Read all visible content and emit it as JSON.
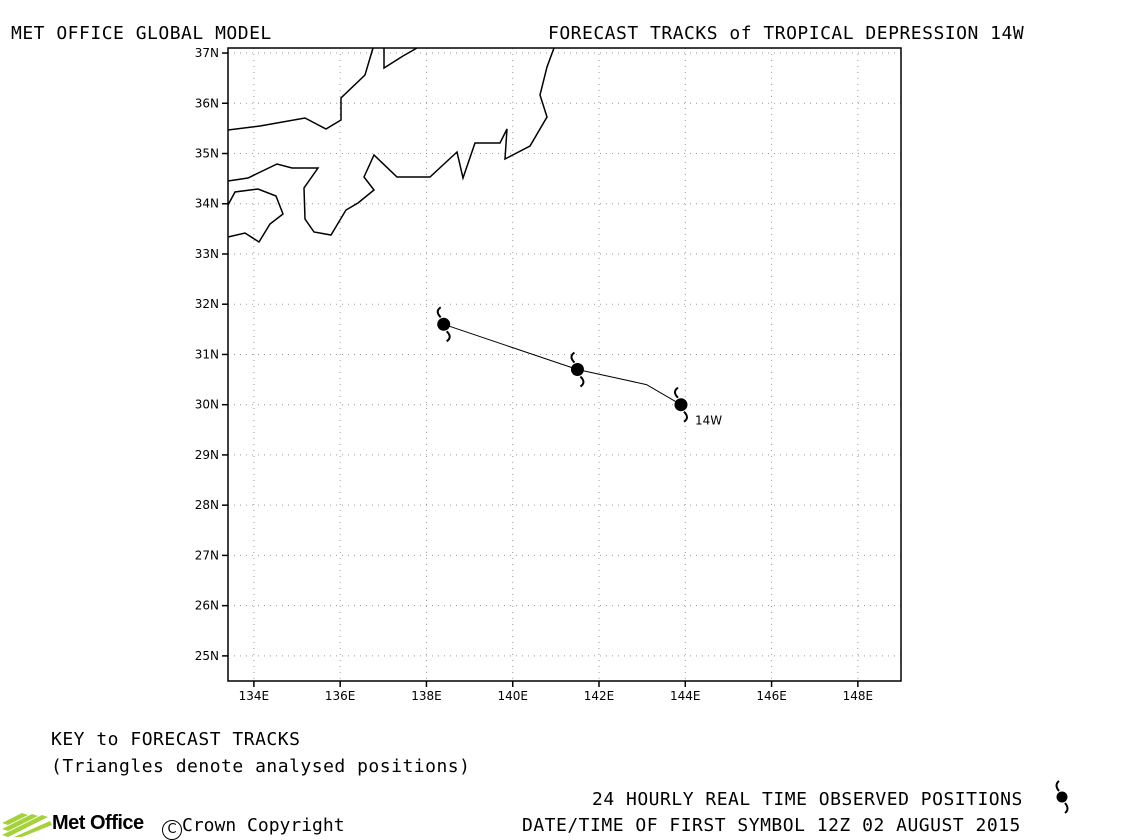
{
  "header": {
    "left_title": "MET OFFICE GLOBAL MODEL",
    "right_title": "FORECAST TRACKS of TROPICAL DEPRESSION 14W"
  },
  "map": {
    "lon_range": [
      133.4,
      149.0
    ],
    "lat_range": [
      24.5,
      37.1
    ],
    "lat_ticks": [
      "37N",
      "36N",
      "35N",
      "34N",
      "33N",
      "32N",
      "31N",
      "30N",
      "29N",
      "28N",
      "27N",
      "26N",
      "25N"
    ],
    "lon_ticks": [
      "134E",
      "136E",
      "138E",
      "140E",
      "142E",
      "144E",
      "146E",
      "148E"
    ],
    "grid": true,
    "storm_label": "14W",
    "track": [
      {
        "lon": 143.9,
        "lat": 30.0
      },
      {
        "lon": 141.5,
        "lat": 30.7
      },
      {
        "lon": 138.4,
        "lat": 31.6
      }
    ],
    "track_line": [
      {
        "lon": 143.9,
        "lat": 30.0
      },
      {
        "lon": 143.1,
        "lat": 30.4
      },
      {
        "lon": 141.5,
        "lat": 30.7
      },
      {
        "lon": 138.4,
        "lat": 31.6
      }
    ]
  },
  "key": {
    "title": "KEY to FORECAST TRACKS",
    "note": "(Triangles denote analysed positions)"
  },
  "footer": {
    "observed": "24 HOURLY REAL TIME OBSERVED POSITIONS",
    "first_symbol": "DATE/TIME OF FIRST SYMBOL 12Z 02 AUGUST 2015",
    "logo_text": "Met Office",
    "copyright": "Crown Copyright"
  }
}
